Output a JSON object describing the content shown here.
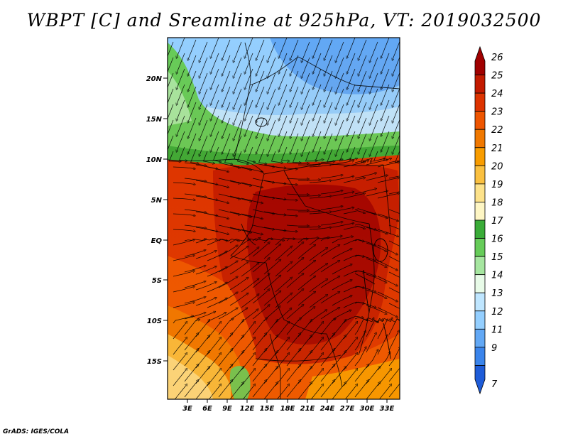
{
  "title": "WBPT [C] and Sreamline at 925hPa, VT: 2019032500",
  "credit": "GrADS: IGES/COLA",
  "map": {
    "lat_labels": [
      "20N",
      "15N",
      "10N",
      "5N",
      "EQ",
      "5S",
      "10S",
      "15S"
    ],
    "lon_labels": [
      "3E",
      "6E",
      "9E",
      "12E",
      "15E",
      "18E",
      "21E",
      "24E",
      "27E",
      "30E",
      "33E"
    ],
    "field": "Wet-bulb potential temperature",
    "pressure_level": "925hPa",
    "valid_time": "2019032500"
  },
  "colorbar": {
    "levels": [
      "26",
      "25",
      "24",
      "23",
      "22",
      "21",
      "20",
      "19",
      "18",
      "17",
      "16",
      "15",
      "14",
      "13",
      "12",
      "11",
      "9",
      "7"
    ],
    "colors": [
      "#a00000",
      "#c31a00",
      "#dd3300",
      "#ee5500",
      "#f07800",
      "#f89c00",
      "#fac040",
      "#fde28a",
      "#fef6c4",
      "#3aac38",
      "#66cc59",
      "#a6e6a0",
      "#e8fbe8",
      "#bfe6ff",
      "#94cfff",
      "#62a8f5",
      "#3a84eb",
      "#1e5cd8"
    ]
  }
}
